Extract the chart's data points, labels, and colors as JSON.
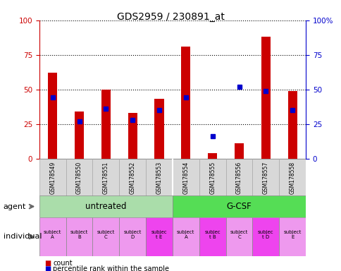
{
  "title": "GDS2959 / 230891_at",
  "samples": [
    "GSM178549",
    "GSM178550",
    "GSM178551",
    "GSM178552",
    "GSM178553",
    "GSM178554",
    "GSM178555",
    "GSM178556",
    "GSM178557",
    "GSM178558"
  ],
  "count_values": [
    62,
    34,
    50,
    33,
    43,
    81,
    4,
    11,
    88,
    49
  ],
  "percentile_values": [
    44,
    27,
    36,
    28,
    35,
    44,
    16,
    52,
    49,
    35
  ],
  "ylim": [
    0,
    100
  ],
  "bar_color": "#cc0000",
  "percentile_color": "#0000cc",
  "agent_labels": [
    "untreated",
    "G-CSF"
  ],
  "agent_colors": [
    "#aaeebb",
    "#55dd55"
  ],
  "individual_labels": [
    "subject\nA",
    "subject\nB",
    "subject\nC",
    "subject\nD",
    "subjec\nt E",
    "subject\nA",
    "subjec\nt B",
    "subject\nC",
    "subjec\nt D",
    "subject\nE"
  ],
  "individual_colors_light": "#ee99ee",
  "individual_colors_bright": "#ee44ee",
  "individual_bright_idx": [
    4,
    6,
    8
  ],
  "tick_label_color": "#cc0000",
  "right_axis_color": "#0000cc",
  "background_color": "#ffffff",
  "bar_width": 0.35
}
